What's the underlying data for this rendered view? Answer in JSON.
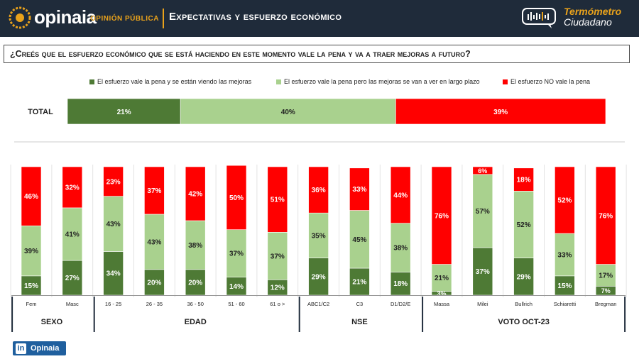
{
  "header": {
    "brand": "opinaia",
    "brand_sub": "OPINIÓN PÚBLICA",
    "title": "Expectativas y esfuerzo económico",
    "badge_line1": "Termómetro",
    "badge_line2": "Ciudadano"
  },
  "question": "¿Creés que el esfuerzo económico que se está haciendo en este momento vale la pena y va a traer mejoras a futuro?",
  "footer": {
    "linkedin_label": "Opinaia"
  },
  "colors": {
    "dark_green": "#4e7a35",
    "light_green": "#a9d18e",
    "red": "#ff0000",
    "navy": "#1f2b3a",
    "gold": "#e9a21b"
  },
  "chart_data": {
    "type": "bar",
    "stacked": true,
    "series_names": [
      "El esfuerzo vale la pena y  se están viendo las mejoras",
      "El esfuerzo vale la pena pero las mejoras se van a ver en largo plazo",
      "El esfuerzo NO vale la pena"
    ],
    "total": {
      "label": "TOTAL",
      "values": [
        21,
        40,
        39
      ]
    },
    "groups": [
      {
        "label": "SEXO",
        "categories": [
          "Fem",
          "Masc"
        ]
      },
      {
        "label": "EDAD",
        "categories": [
          "16 - 25",
          "26 - 35",
          "36 - 50",
          "51 - 60",
          "61 o >"
        ]
      },
      {
        "label": "NSE",
        "categories": [
          "ABC1/C2",
          "C3",
          "D1/D2/E"
        ]
      },
      {
        "label": "VOTO OCT-23",
        "categories": [
          "Massa",
          "Milei",
          "Bullrich",
          "Schiaretti",
          "Bregman"
        ]
      }
    ],
    "categories": [
      "Fem",
      "Masc",
      "16 - 25",
      "26 - 35",
      "36 - 50",
      "51 - 60",
      "61 o >",
      "ABC1/C2",
      "C3",
      "D1/D2/E",
      "Massa",
      "Milei",
      "Bullrich",
      "Schiaretti",
      "Bregman"
    ],
    "series": [
      {
        "name": "El esfuerzo vale la pena y  se están viendo las mejoras",
        "values": [
          15,
          27,
          34,
          20,
          20,
          14,
          12,
          29,
          21,
          18,
          3,
          37,
          29,
          15,
          7
        ]
      },
      {
        "name": "El esfuerzo vale la pena pero las mejoras se van a ver en largo plazo",
        "values": [
          39,
          41,
          43,
          43,
          38,
          37,
          37,
          35,
          45,
          38,
          21,
          57,
          52,
          33,
          17
        ]
      },
      {
        "name": "El esfuerzo NO vale la pena",
        "values": [
          46,
          32,
          23,
          37,
          42,
          50,
          51,
          36,
          33,
          44,
          76,
          6,
          18,
          52,
          76
        ]
      }
    ],
    "unit": "%",
    "ylim": [
      0,
      100
    ]
  }
}
